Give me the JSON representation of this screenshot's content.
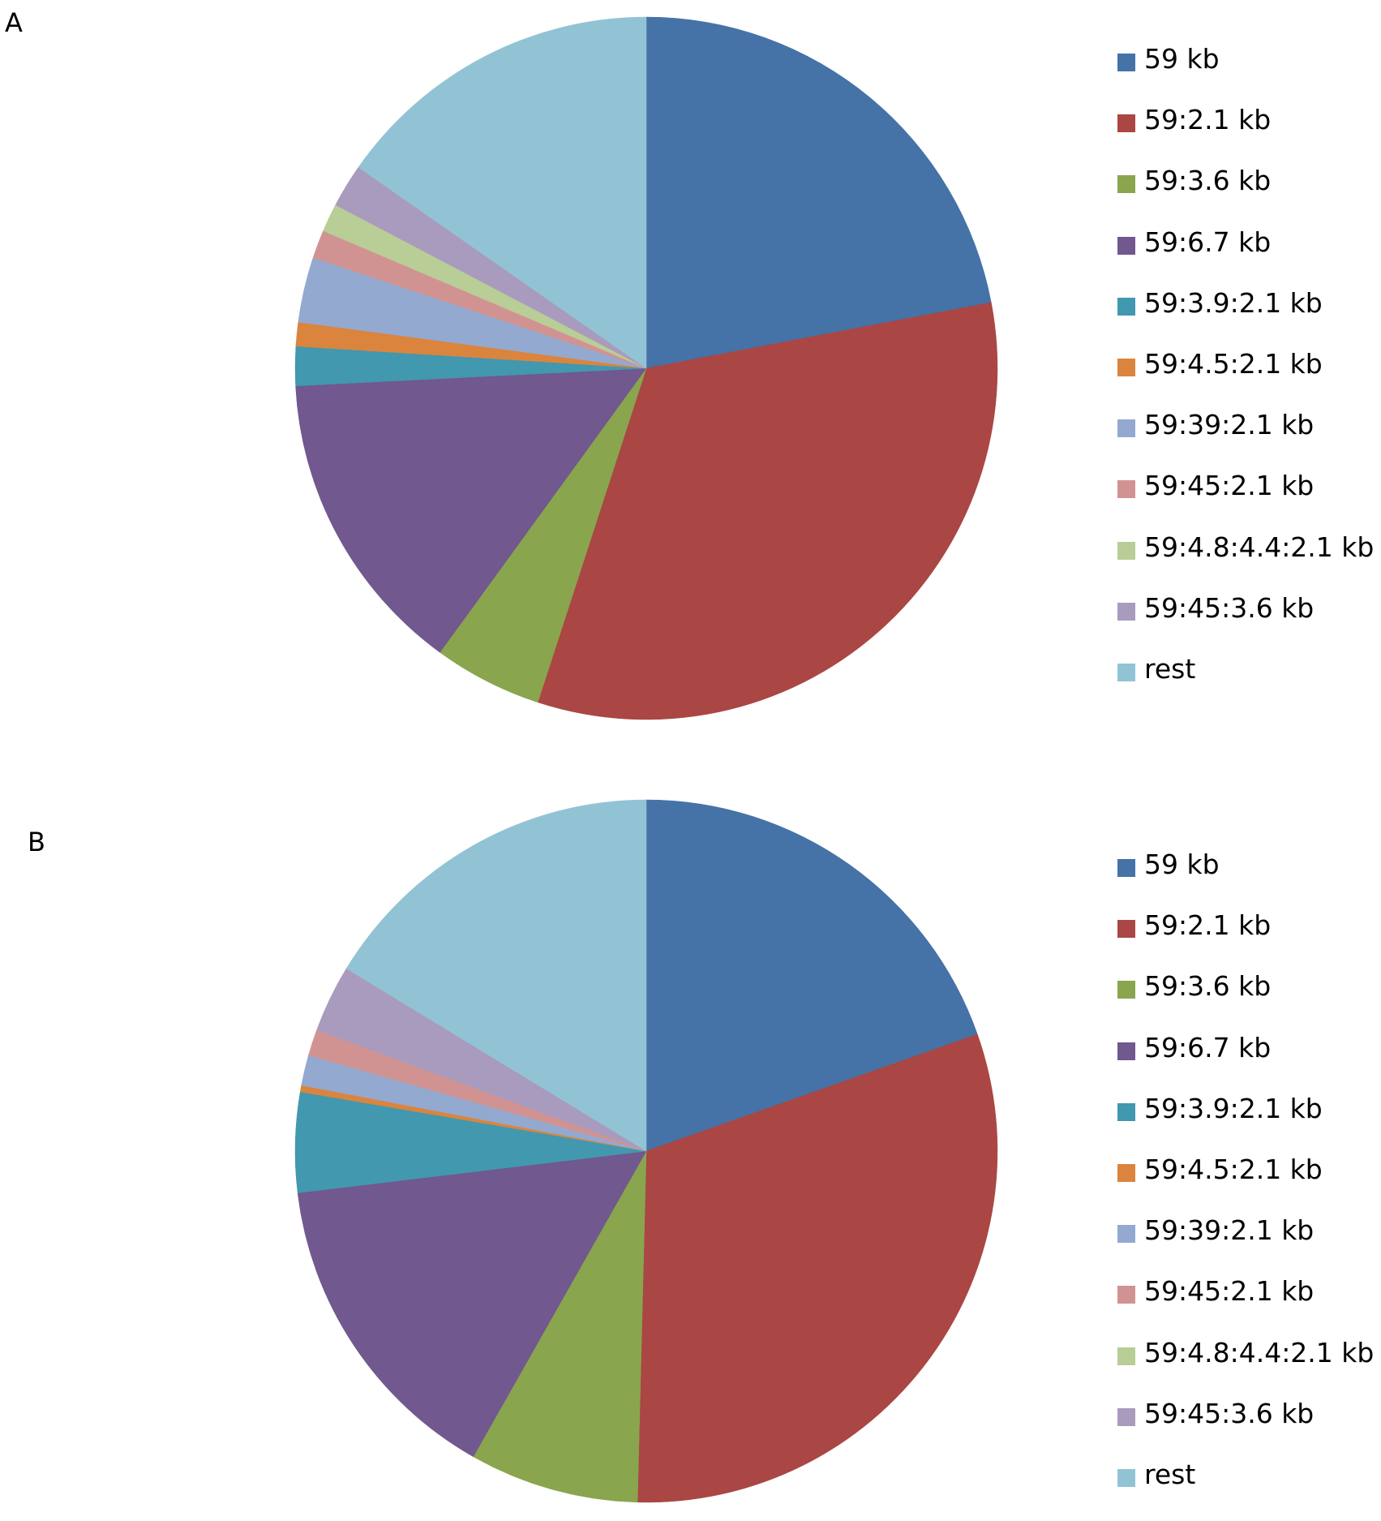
{
  "legend_labels": [
    "59 kb",
    "59:2.1 kb",
    "59:3.6 kb",
    "59:6.7 kb",
    "59:3.9:2.1 kb",
    "59:4.5:2.1 kb",
    "59:39:2.1 kb",
    "59:45:2.1 kb",
    "59:4.8:4.4:2.1 kb",
    "59:45:3.6 kb",
    "rest"
  ],
  "colors": [
    "#4572A7",
    "#AA4643",
    "#89A54E",
    "#71588F",
    "#4198AF",
    "#DB843D",
    "#93A9CF",
    "#D19392",
    "#B9CD96",
    "#A99BBD",
    "#92C3D5"
  ],
  "chart_data": [
    {
      "panel": "A",
      "type": "pie",
      "start": "12 o'clock, clockwise",
      "legend_position": "right",
      "categories": [
        "59 kb",
        "59:2.1 kb",
        "59:3.6 kb",
        "59:6.7 kb",
        "59:3.9:2.1 kb",
        "59:4.5:2.1 kb",
        "59:39:2.1 kb",
        "59:45:2.1 kb",
        "59:4.8:4.4:2.1 kb",
        "59:45:3.6 kb",
        "rest"
      ],
      "values": [
        22.0,
        33.0,
        5.0,
        14.2,
        1.8,
        1.1,
        3.0,
        1.3,
        1.3,
        2.0,
        15.3
      ]
    },
    {
      "panel": "B",
      "type": "pie",
      "start": "12 o'clock, clockwise",
      "legend_position": "right",
      "categories": [
        "59 kb",
        "59:2.1 kb",
        "59:3.6 kb",
        "59:6.7 kb",
        "59:3.9:2.1 kb",
        "59:4.5:2.1 kb",
        "59:39:2.1 kb",
        "59:45:2.1 kb",
        "59:4.8:4.4:2.1 kb",
        "59:45:3.6 kb",
        "rest"
      ],
      "values": [
        19.6,
        30.8,
        7.8,
        14.9,
        4.6,
        0.3,
        1.4,
        1.2,
        0.0,
        3.1,
        16.3
      ]
    }
  ]
}
